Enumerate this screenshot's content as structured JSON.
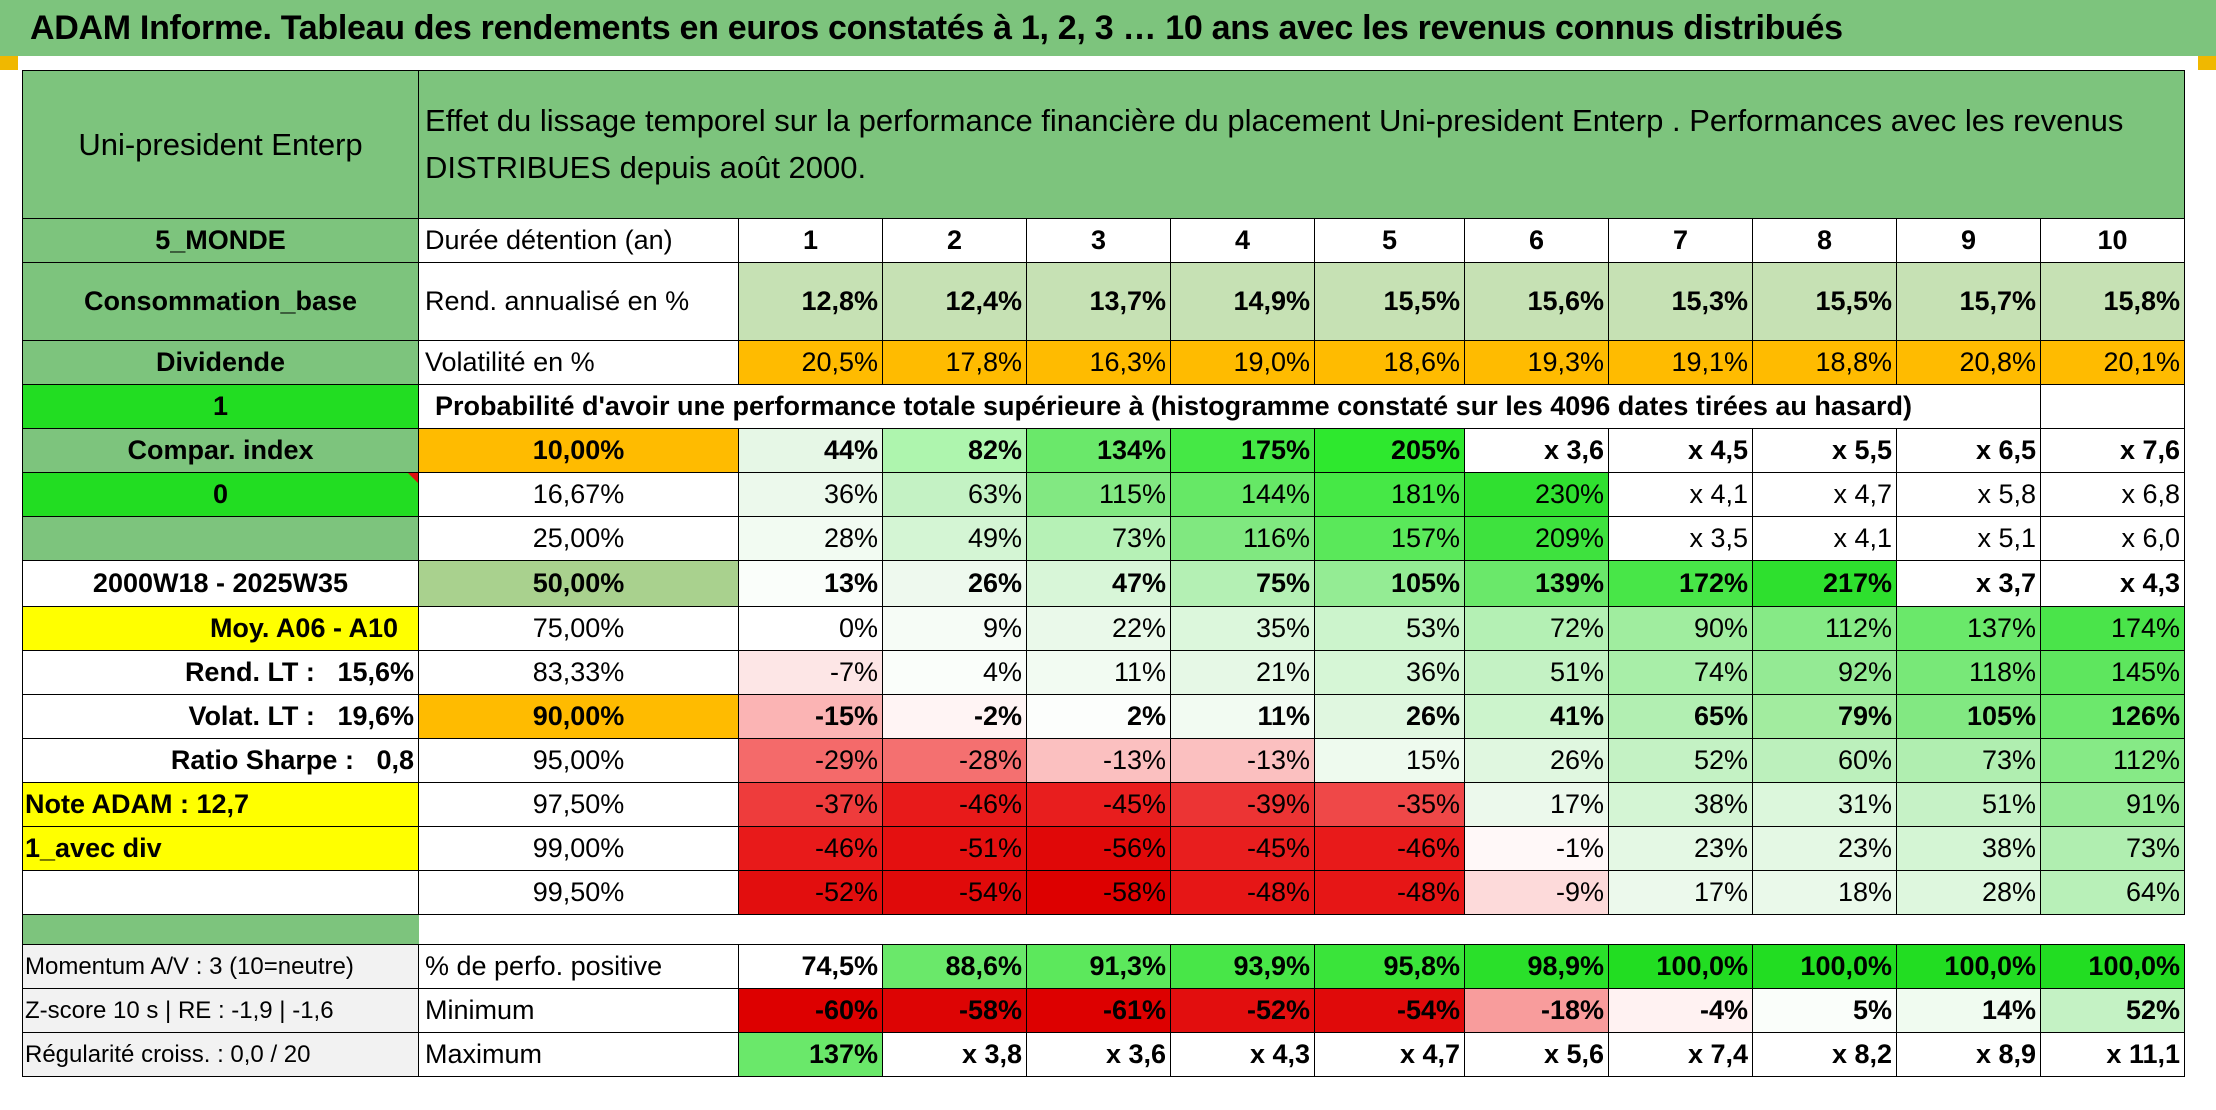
{
  "title": "ADAM Informe. Tableau des rendements en euros constatés à 1, 2, 3 … 10 ans avec les revenus connus distribués",
  "header": {
    "name": "Uni-president Enterp",
    "description_line1": "Effet du lissage temporel sur la performance financière du placement Uni-president Enterp . Performances avec les revenus",
    "description_line2": "DISTRIBUES depuis août 2000."
  },
  "left_labels": {
    "region": "5_MONDE",
    "sector": "Consommation_base",
    "income": "Dividende",
    "flag1": "1",
    "compar": "Compar. index",
    "flag0": "0",
    "period": "2000W18 - 2025W35",
    "moy": "Moy. A06 - A10",
    "rend_lt_label": "Rend. LT :",
    "rend_lt_value": "15,6%",
    "volat_lt_label": "Volat. LT :",
    "volat_lt_value": "19,6%",
    "sharpe_label": "Ratio Sharpe :",
    "sharpe_value": "0,8",
    "note": "Note ADAM : 12,7",
    "avec_div": "1_avec div",
    "momentum": "Momentum A/V : 3 (10=neutre)",
    "zscore": "Z-score 10 s | RE : -1,9 | -1,6",
    "regularite": "Régularité croiss. : 0,0 / 20"
  },
  "row_labels": {
    "duree": "Durée détention (an)",
    "rend": "Rend. annualisé en %",
    "vol": "Volatilité en %",
    "proba": "Probabilité d'avoir une performance totale supérieure à (histogramme constaté sur les 4096 dates tirées au hasard)",
    "positive": "% de perfo. positive",
    "minimum": "Minimum",
    "maximum": "Maximum"
  },
  "years": [
    "1",
    "2",
    "3",
    "4",
    "5",
    "6",
    "7",
    "8",
    "9",
    "10"
  ],
  "rend": [
    "12,8%",
    "12,4%",
    "13,7%",
    "14,9%",
    "15,5%",
    "15,6%",
    "15,3%",
    "15,5%",
    "15,7%",
    "15,8%"
  ],
  "vol": [
    "20,5%",
    "17,8%",
    "16,3%",
    "19,0%",
    "18,6%",
    "19,3%",
    "19,1%",
    "18,8%",
    "20,8%",
    "20,1%"
  ],
  "vol_colors": [
    "#ffbb00",
    "#ffbb00",
    "#ffbb00",
    "#ffbb00",
    "#ffbb00",
    "#ffbb00",
    "#ffbb00",
    "#ffbb00",
    "#ffbb00",
    "#ffbb00"
  ],
  "prob_rows": [
    {
      "pct": "10,00%",
      "values": [
        "44%",
        "82%",
        "134%",
        "175%",
        "205%",
        "x 3,6",
        "x 4,5",
        "x 5,5",
        "x 6,5",
        "x 7,6"
      ],
      "colors": [
        "#e6f7e6",
        "#aef5ae",
        "#6ae86a",
        "#45e845",
        "#2ee82e",
        "#ffffff",
        "#ffffff",
        "#ffffff",
        "#ffffff",
        "#ffffff"
      ],
      "bold": true
    },
    {
      "pct": "16,67%",
      "values": [
        "36%",
        "63%",
        "115%",
        "144%",
        "181%",
        "230%",
        "x 4,1",
        "x 4,7",
        "x 5,8",
        "x 6,8"
      ],
      "colors": [
        "#ecf9ec",
        "#c4f2c4",
        "#82e882",
        "#66e866",
        "#46e846",
        "#30e030",
        "#ffffff",
        "#ffffff",
        "#ffffff",
        "#ffffff"
      ]
    },
    {
      "pct": "25,00%",
      "values": [
        "28%",
        "49%",
        "73%",
        "116%",
        "157%",
        "209%",
        "x 3,5",
        "x 4,1",
        "x 5,1",
        "x 6,0"
      ],
      "colors": [
        "#f2fbf2",
        "#d4f5d4",
        "#b6f1b6",
        "#80e880",
        "#5ae85a",
        "#3ee23e",
        "#ffffff",
        "#ffffff",
        "#ffffff",
        "#ffffff"
      ]
    },
    {
      "pct": "50,00%",
      "values": [
        "13%",
        "26%",
        "47%",
        "75%",
        "105%",
        "139%",
        "172%",
        "217%",
        "x 3,7",
        "x 4,3"
      ],
      "colors": [
        "#fafefa",
        "#eef9ee",
        "#d8f6d8",
        "#b4f0b4",
        "#94ec94",
        "#6ae86a",
        "#48e648",
        "#2ee02e",
        "#ffffff",
        "#ffffff"
      ],
      "big": true
    },
    {
      "pct": "75,00%",
      "values": [
        "0%",
        "9%",
        "22%",
        "35%",
        "53%",
        "72%",
        "90%",
        "112%",
        "137%",
        "174%"
      ],
      "colors": [
        "#ffffff",
        "#f6fcf6",
        "#eaf9ea",
        "#dcf7dc",
        "#ccf4cc",
        "#b4f0b4",
        "#a0ed9f",
        "#86ea86",
        "#6ae86a",
        "#4ae44a"
      ]
    },
    {
      "pct": "83,33%",
      "values": [
        "-7%",
        "4%",
        "11%",
        "21%",
        "36%",
        "51%",
        "74%",
        "92%",
        "118%",
        "145%"
      ],
      "colors": [
        "#fde6e6",
        "#fafefa",
        "#f2fbf2",
        "#e6f8e6",
        "#d6f6d6",
        "#c4f2c4",
        "#a8eea8",
        "#94ea94",
        "#78e878",
        "#5ee65e"
      ]
    },
    {
      "pct": "90,00%",
      "values": [
        "-15%",
        "-2%",
        "2%",
        "11%",
        "26%",
        "41%",
        "65%",
        "79%",
        "105%",
        "126%"
      ],
      "colors": [
        "#fbb4b4",
        "#fff4f4",
        "#fcfefc",
        "#f2fbf2",
        "#e0f7e0",
        "#ccf4cc",
        "#b2efb2",
        "#a2ec9f",
        "#82e882",
        "#6ce86c"
      ],
      "bold": true
    },
    {
      "pct": "95,00%",
      "values": [
        "-29%",
        "-28%",
        "-13%",
        "-13%",
        "15%",
        "26%",
        "52%",
        "60%",
        "73%",
        "112%"
      ],
      "colors": [
        "#f46a6a",
        "#f47070",
        "#fbc0c0",
        "#fbc0c0",
        "#eefaee",
        "#e0f7e0",
        "#c4f2c4",
        "#bcf0bc",
        "#b0eeb0",
        "#86ea86"
      ]
    },
    {
      "pct": "97,50%",
      "values": [
        "-37%",
        "-46%",
        "-45%",
        "-39%",
        "-35%",
        "17%",
        "38%",
        "31%",
        "51%",
        "91%"
      ],
      "colors": [
        "#ee3c3c",
        "#e81a1a",
        "#e81e1e",
        "#ec3434",
        "#ef4848",
        "#ecf9ec",
        "#d4f5d4",
        "#dcf7dc",
        "#c6f2c6",
        "#96ea96"
      ]
    },
    {
      "pct": "99,00%",
      "values": [
        "-46%",
        "-51%",
        "-56%",
        "-45%",
        "-46%",
        "-1%",
        "23%",
        "23%",
        "38%",
        "73%"
      ],
      "colors": [
        "#e81a1a",
        "#e41010",
        "#e00808",
        "#e81e1e",
        "#e81a1a",
        "#fff8f8",
        "#e4f8e4",
        "#e4f8e4",
        "#d4f5d4",
        "#b0eeb0"
      ]
    },
    {
      "pct": "99,50%",
      "values": [
        "-52%",
        "-54%",
        "-58%",
        "-48%",
        "-48%",
        "-9%",
        "17%",
        "18%",
        "28%",
        "64%"
      ],
      "colors": [
        "#e20e0e",
        "#e00a0a",
        "#dd0000",
        "#e61616",
        "#e61616",
        "#fddada",
        "#ecf9ec",
        "#eaf9ea",
        "#def7de",
        "#b8f0b8"
      ]
    }
  ],
  "prob_pct_colors": [
    "#ffbb00",
    "#ffffff",
    "#ffffff",
    "#a9d18e",
    "#ffffff",
    "#ffffff",
    "#ffbb00",
    "#ffffff",
    "#ffffff",
    "#ffffff",
    "#ffffff"
  ],
  "positive": [
    "74,5%",
    "88,6%",
    "91,3%",
    "93,9%",
    "95,8%",
    "98,9%",
    "100,0%",
    "100,0%",
    "100,0%",
    "100,0%"
  ],
  "positive_colors": [
    "#ffffff",
    "#6ae86a",
    "#5ce85c",
    "#48e648",
    "#3ae43a",
    "#2ae02a",
    "#22dd22",
    "#22dd22",
    "#22dd22",
    "#22dd22"
  ],
  "minimum": [
    "-60%",
    "-58%",
    "-61%",
    "-52%",
    "-54%",
    "-18%",
    "-4%",
    "5%",
    "14%",
    "52%"
  ],
  "minimum_colors": [
    "#dd0000",
    "#dd0404",
    "#dd0000",
    "#e20e0e",
    "#e00a0a",
    "#f89c9c",
    "#fff2f2",
    "#fafefa",
    "#f0fbf0",
    "#c4f2c4"
  ],
  "maximum": [
    "137%",
    "x 3,8",
    "x 3,6",
    "x 4,3",
    "x 4,7",
    "x 5,6",
    "x 7,4",
    "x 8,2",
    "x 8,9",
    "x 11,1"
  ],
  "maximum_colors": [
    "#6ae86a",
    "#ffffff",
    "#ffffff",
    "#ffffff",
    "#ffffff",
    "#ffffff",
    "#ffffff",
    "#ffffff",
    "#ffffff",
    "#ffffff"
  ]
}
